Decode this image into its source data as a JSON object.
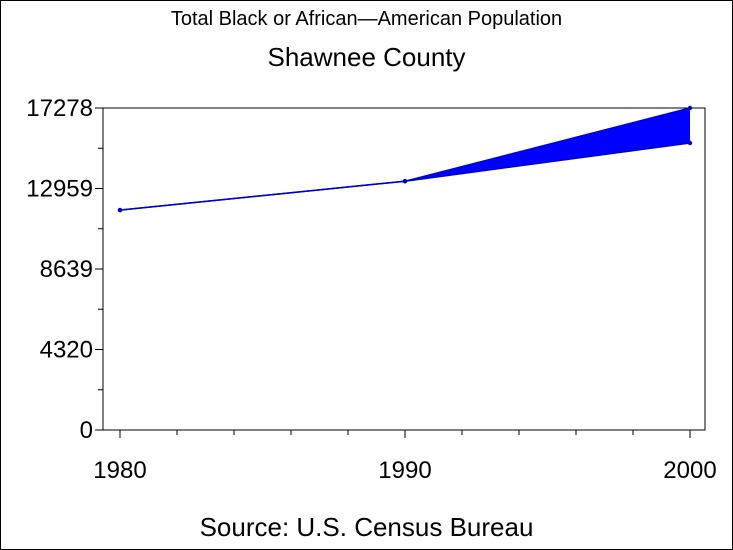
{
  "chart_data": {
    "type": "line",
    "title": "Total Black or African—American Population",
    "subtitle": "Shawnee County",
    "source": "Source: U.S. Census Bureau",
    "xlabel": "",
    "ylabel": "",
    "x": [
      1980,
      1990,
      2000
    ],
    "x_ticks": [
      "1980",
      "1990",
      "2000"
    ],
    "y_ticks": [
      "0",
      "4320",
      "8639",
      "12959",
      "17278"
    ],
    "ylim": [
      0,
      17278
    ],
    "xlim": [
      1980,
      2000
    ],
    "series": [
      {
        "values": [
          11800,
          13350,
          17278
        ]
      },
      {
        "values": [
          11800,
          13350,
          15400
        ]
      }
    ],
    "band_between_series": true,
    "colors": {
      "line": "#0000cc",
      "band": "#0000ff",
      "axis": "#000000"
    },
    "grid": false,
    "legend": "none"
  }
}
